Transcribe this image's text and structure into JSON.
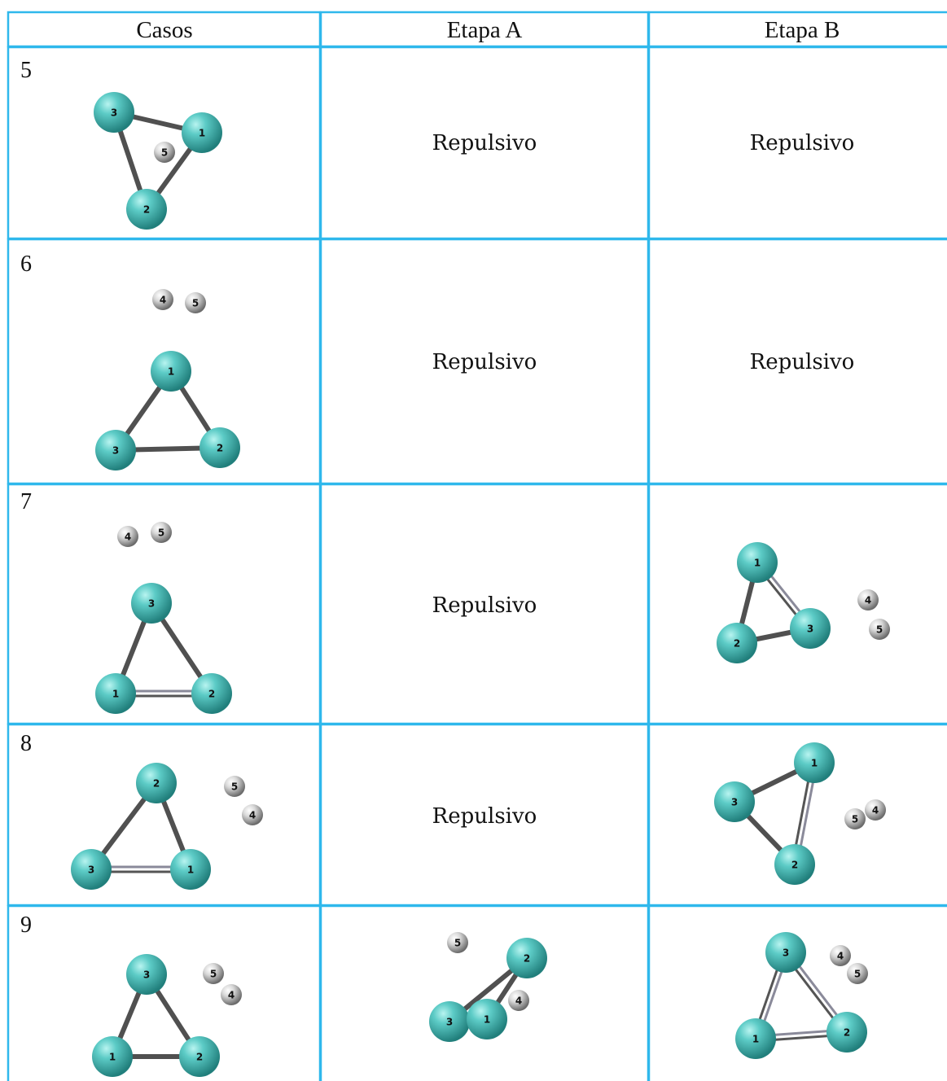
{
  "table": {
    "header": [
      "Casos",
      "Etapa A",
      "Etapa B"
    ],
    "rows": [
      {
        "case": "5",
        "casos": [
          "3",
          "1",
          "5",
          "2"
        ],
        "etapa_a": "Repulsivo",
        "etapa_b": "Repulsivo"
      },
      {
        "case": "6",
        "casos": [
          "4",
          "5",
          "1",
          "3",
          "2"
        ],
        "etapa_a": "Repulsivo",
        "etapa_b": "Repulsivo"
      },
      {
        "case": "7",
        "casos": [
          "4",
          "5",
          "3",
          "1",
          "2"
        ],
        "etapa_a": "Repulsivo",
        "etapa_b": [
          "1",
          "2",
          "3",
          "4",
          "5"
        ]
      },
      {
        "case": "8",
        "casos": [
          "2",
          "3",
          "1",
          "5",
          "4"
        ],
        "etapa_a": "Repulsivo",
        "etapa_b": [
          "1",
          "3",
          "2",
          "5",
          "4"
        ]
      },
      {
        "case": "9",
        "casos": [
          "3",
          "1",
          "2",
          "5",
          "4"
        ],
        "etapa_a": [
          "5",
          "2",
          "4",
          "3",
          "1"
        ],
        "etapa_b": [
          "3",
          "4",
          "5",
          "1",
          "2"
        ]
      }
    ]
  }
}
